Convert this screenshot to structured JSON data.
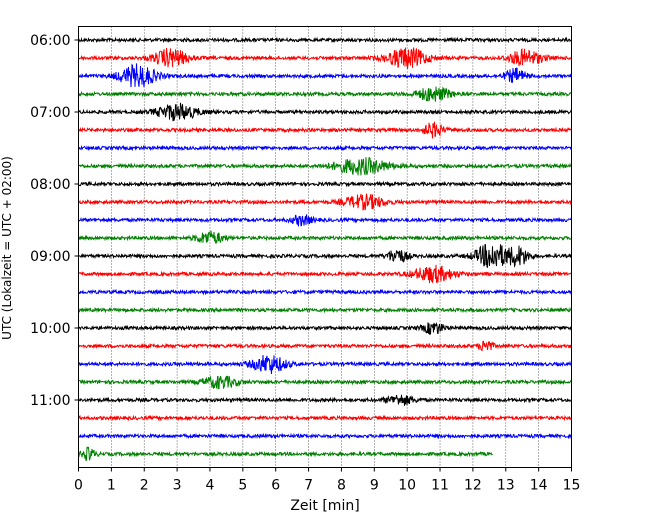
{
  "chart_data": {
    "type": "line",
    "title": "",
    "xlabel": "Zeit  [min]",
    "ylabel": "UTC (Lokalzeit = UTC + 02:00)",
    "xlim": [
      0,
      15
    ],
    "x_ticks": [
      "0",
      "1",
      "2",
      "3",
      "4",
      "5",
      "6",
      "7",
      "8",
      "9",
      "10",
      "11",
      "12",
      "13",
      "14",
      "15"
    ],
    "y_ticks": [
      "06:00",
      "07:00",
      "08:00",
      "09:00",
      "10:00",
      "11:00"
    ],
    "grid": "vertical dotted",
    "rows_per_hour": 4,
    "row_minutes": 15,
    "colors": [
      "#000000",
      "#ff0000",
      "#0000ff",
      "#008000"
    ],
    "traces": [
      {
        "start": "06:00",
        "color": "#000000",
        "end_min": 15,
        "events": []
      },
      {
        "start": "06:15",
        "color": "#ff0000",
        "end_min": 15,
        "events": [
          [
            2.8,
            0.5,
            9
          ],
          [
            10.0,
            0.6,
            10
          ],
          [
            13.6,
            0.5,
            8
          ]
        ]
      },
      {
        "start": "06:30",
        "color": "#0000ff",
        "end_min": 15,
        "events": [
          [
            1.8,
            0.55,
            11
          ],
          [
            13.3,
            0.3,
            7
          ]
        ]
      },
      {
        "start": "06:45",
        "color": "#008000",
        "end_min": 15,
        "events": [
          [
            10.8,
            0.5,
            7
          ]
        ]
      },
      {
        "start": "07:00",
        "color": "#000000",
        "end_min": 15,
        "events": [
          [
            3.0,
            0.6,
            8
          ]
        ]
      },
      {
        "start": "07:15",
        "color": "#ff0000",
        "end_min": 15,
        "events": [
          [
            10.8,
            0.3,
            7
          ]
        ]
      },
      {
        "start": "07:30",
        "color": "#0000ff",
        "end_min": 15,
        "events": []
      },
      {
        "start": "07:45",
        "color": "#008000",
        "end_min": 15,
        "events": [
          [
            8.6,
            0.8,
            8
          ]
        ]
      },
      {
        "start": "08:00",
        "color": "#000000",
        "end_min": 15,
        "events": []
      },
      {
        "start": "08:15",
        "color": "#ff0000",
        "end_min": 15,
        "events": [
          [
            8.7,
            0.6,
            7
          ]
        ]
      },
      {
        "start": "08:30",
        "color": "#0000ff",
        "end_min": 15,
        "events": [
          [
            6.8,
            0.3,
            5
          ]
        ]
      },
      {
        "start": "08:45",
        "color": "#008000",
        "end_min": 15,
        "events": [
          [
            4.0,
            0.4,
            6
          ]
        ]
      },
      {
        "start": "09:00",
        "color": "#000000",
        "end_min": 15,
        "events": [
          [
            9.7,
            0.3,
            7
          ],
          [
            12.6,
            0.5,
            13
          ],
          [
            13.4,
            0.3,
            9
          ]
        ]
      },
      {
        "start": "09:15",
        "color": "#ff0000",
        "end_min": 15,
        "events": [
          [
            10.8,
            0.6,
            8
          ]
        ]
      },
      {
        "start": "09:30",
        "color": "#0000ff",
        "end_min": 15,
        "events": []
      },
      {
        "start": "09:45",
        "color": "#008000",
        "end_min": 15,
        "events": []
      },
      {
        "start": "10:00",
        "color": "#000000",
        "end_min": 15,
        "events": [
          [
            10.8,
            0.3,
            6
          ]
        ]
      },
      {
        "start": "10:15",
        "color": "#ff0000",
        "end_min": 15,
        "events": [
          [
            12.4,
            0.2,
            6
          ]
        ]
      },
      {
        "start": "10:30",
        "color": "#0000ff",
        "end_min": 15,
        "events": [
          [
            5.8,
            0.5,
            9
          ]
        ]
      },
      {
        "start": "10:45",
        "color": "#008000",
        "end_min": 15,
        "events": [
          [
            4.3,
            0.5,
            6
          ]
        ]
      },
      {
        "start": "11:00",
        "color": "#000000",
        "end_min": 15,
        "events": [
          [
            9.8,
            0.4,
            5
          ]
        ]
      },
      {
        "start": "11:15",
        "color": "#ff0000",
        "end_min": 15,
        "events": []
      },
      {
        "start": "11:30",
        "color": "#0000ff",
        "end_min": 15,
        "events": []
      },
      {
        "start": "11:45",
        "color": "#008000",
        "end_min": 12.6,
        "events": [
          [
            0.3,
            0.2,
            6
          ]
        ]
      }
    ]
  }
}
